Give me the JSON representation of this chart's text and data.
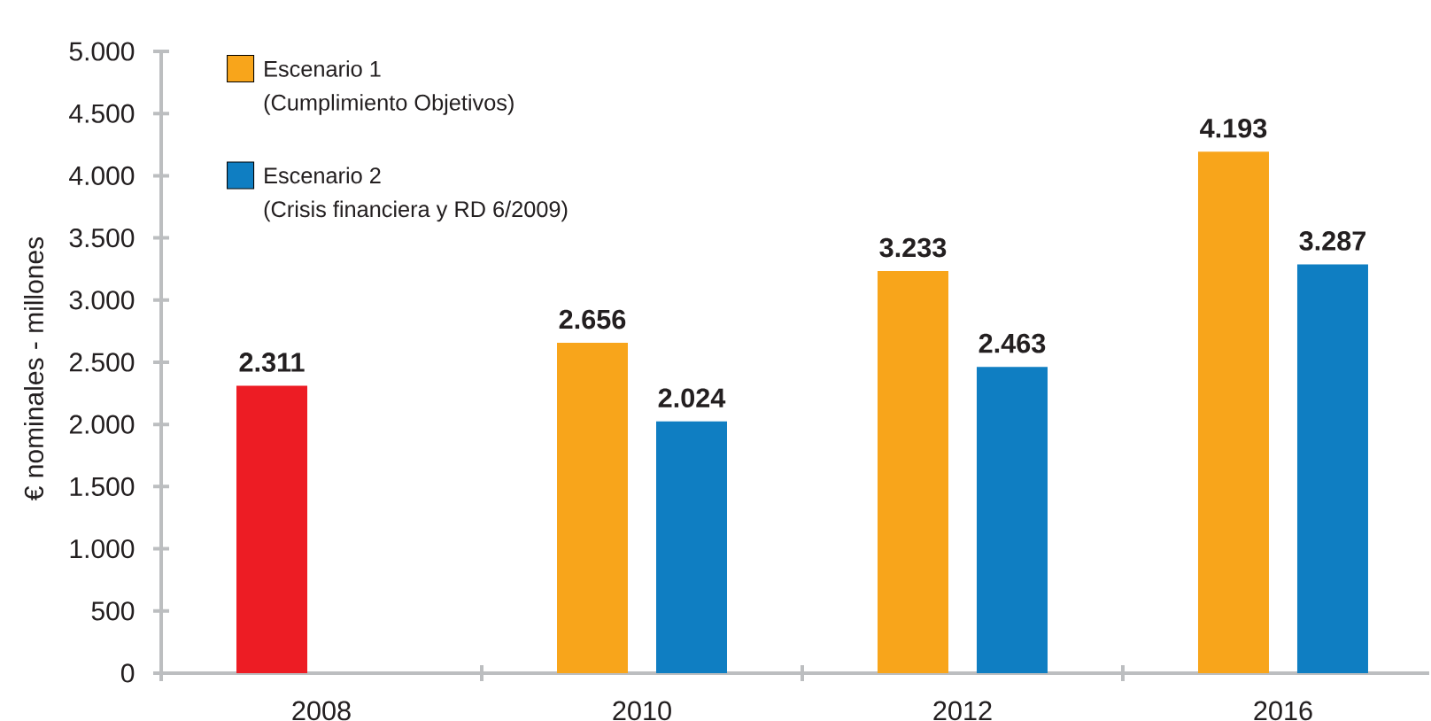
{
  "chart_data": {
    "type": "bar",
    "ylabel": "€ nominales - millones",
    "categories": [
      "2008",
      "2010",
      "2012",
      "2016"
    ],
    "series": [
      {
        "name": "Escenario 1 (Cumplimiento Objetivos)",
        "color": "#f8a51b",
        "colors": [
          "#ed1c24",
          "#f8a51b",
          "#f8a51b",
          "#f8a51b"
        ],
        "values": [
          2311,
          2656,
          3233,
          4193
        ],
        "value_labels": [
          "2.311",
          "2.656",
          "3.233",
          "4.193"
        ]
      },
      {
        "name": "Escenario 2 (Crisis financiera y RD 6/2009)",
        "color": "#0f7ec2",
        "values": [
          null,
          2024,
          2463,
          3287
        ],
        "value_labels": [
          null,
          "2.024",
          "2.463",
          "3.287"
        ]
      }
    ],
    "ylim": [
      0,
      5000
    ],
    "yticks": [
      0,
      500,
      {
        "value": 1000,
        "label": "1.000"
      },
      {
        "value": 1500,
        "label": "1.500"
      },
      {
        "value": 2000,
        "label": "2.000"
      },
      {
        "value": 2500,
        "label": "2.500"
      },
      {
        "value": 3000,
        "label": "3.000"
      },
      {
        "value": 3500,
        "label": "3.500"
      },
      {
        "value": 4000,
        "label": "4.000"
      },
      {
        "value": 4500,
        "label": "4.500"
      },
      {
        "value": 5000,
        "label": "5.000"
      }
    ],
    "legend": "top left"
  }
}
